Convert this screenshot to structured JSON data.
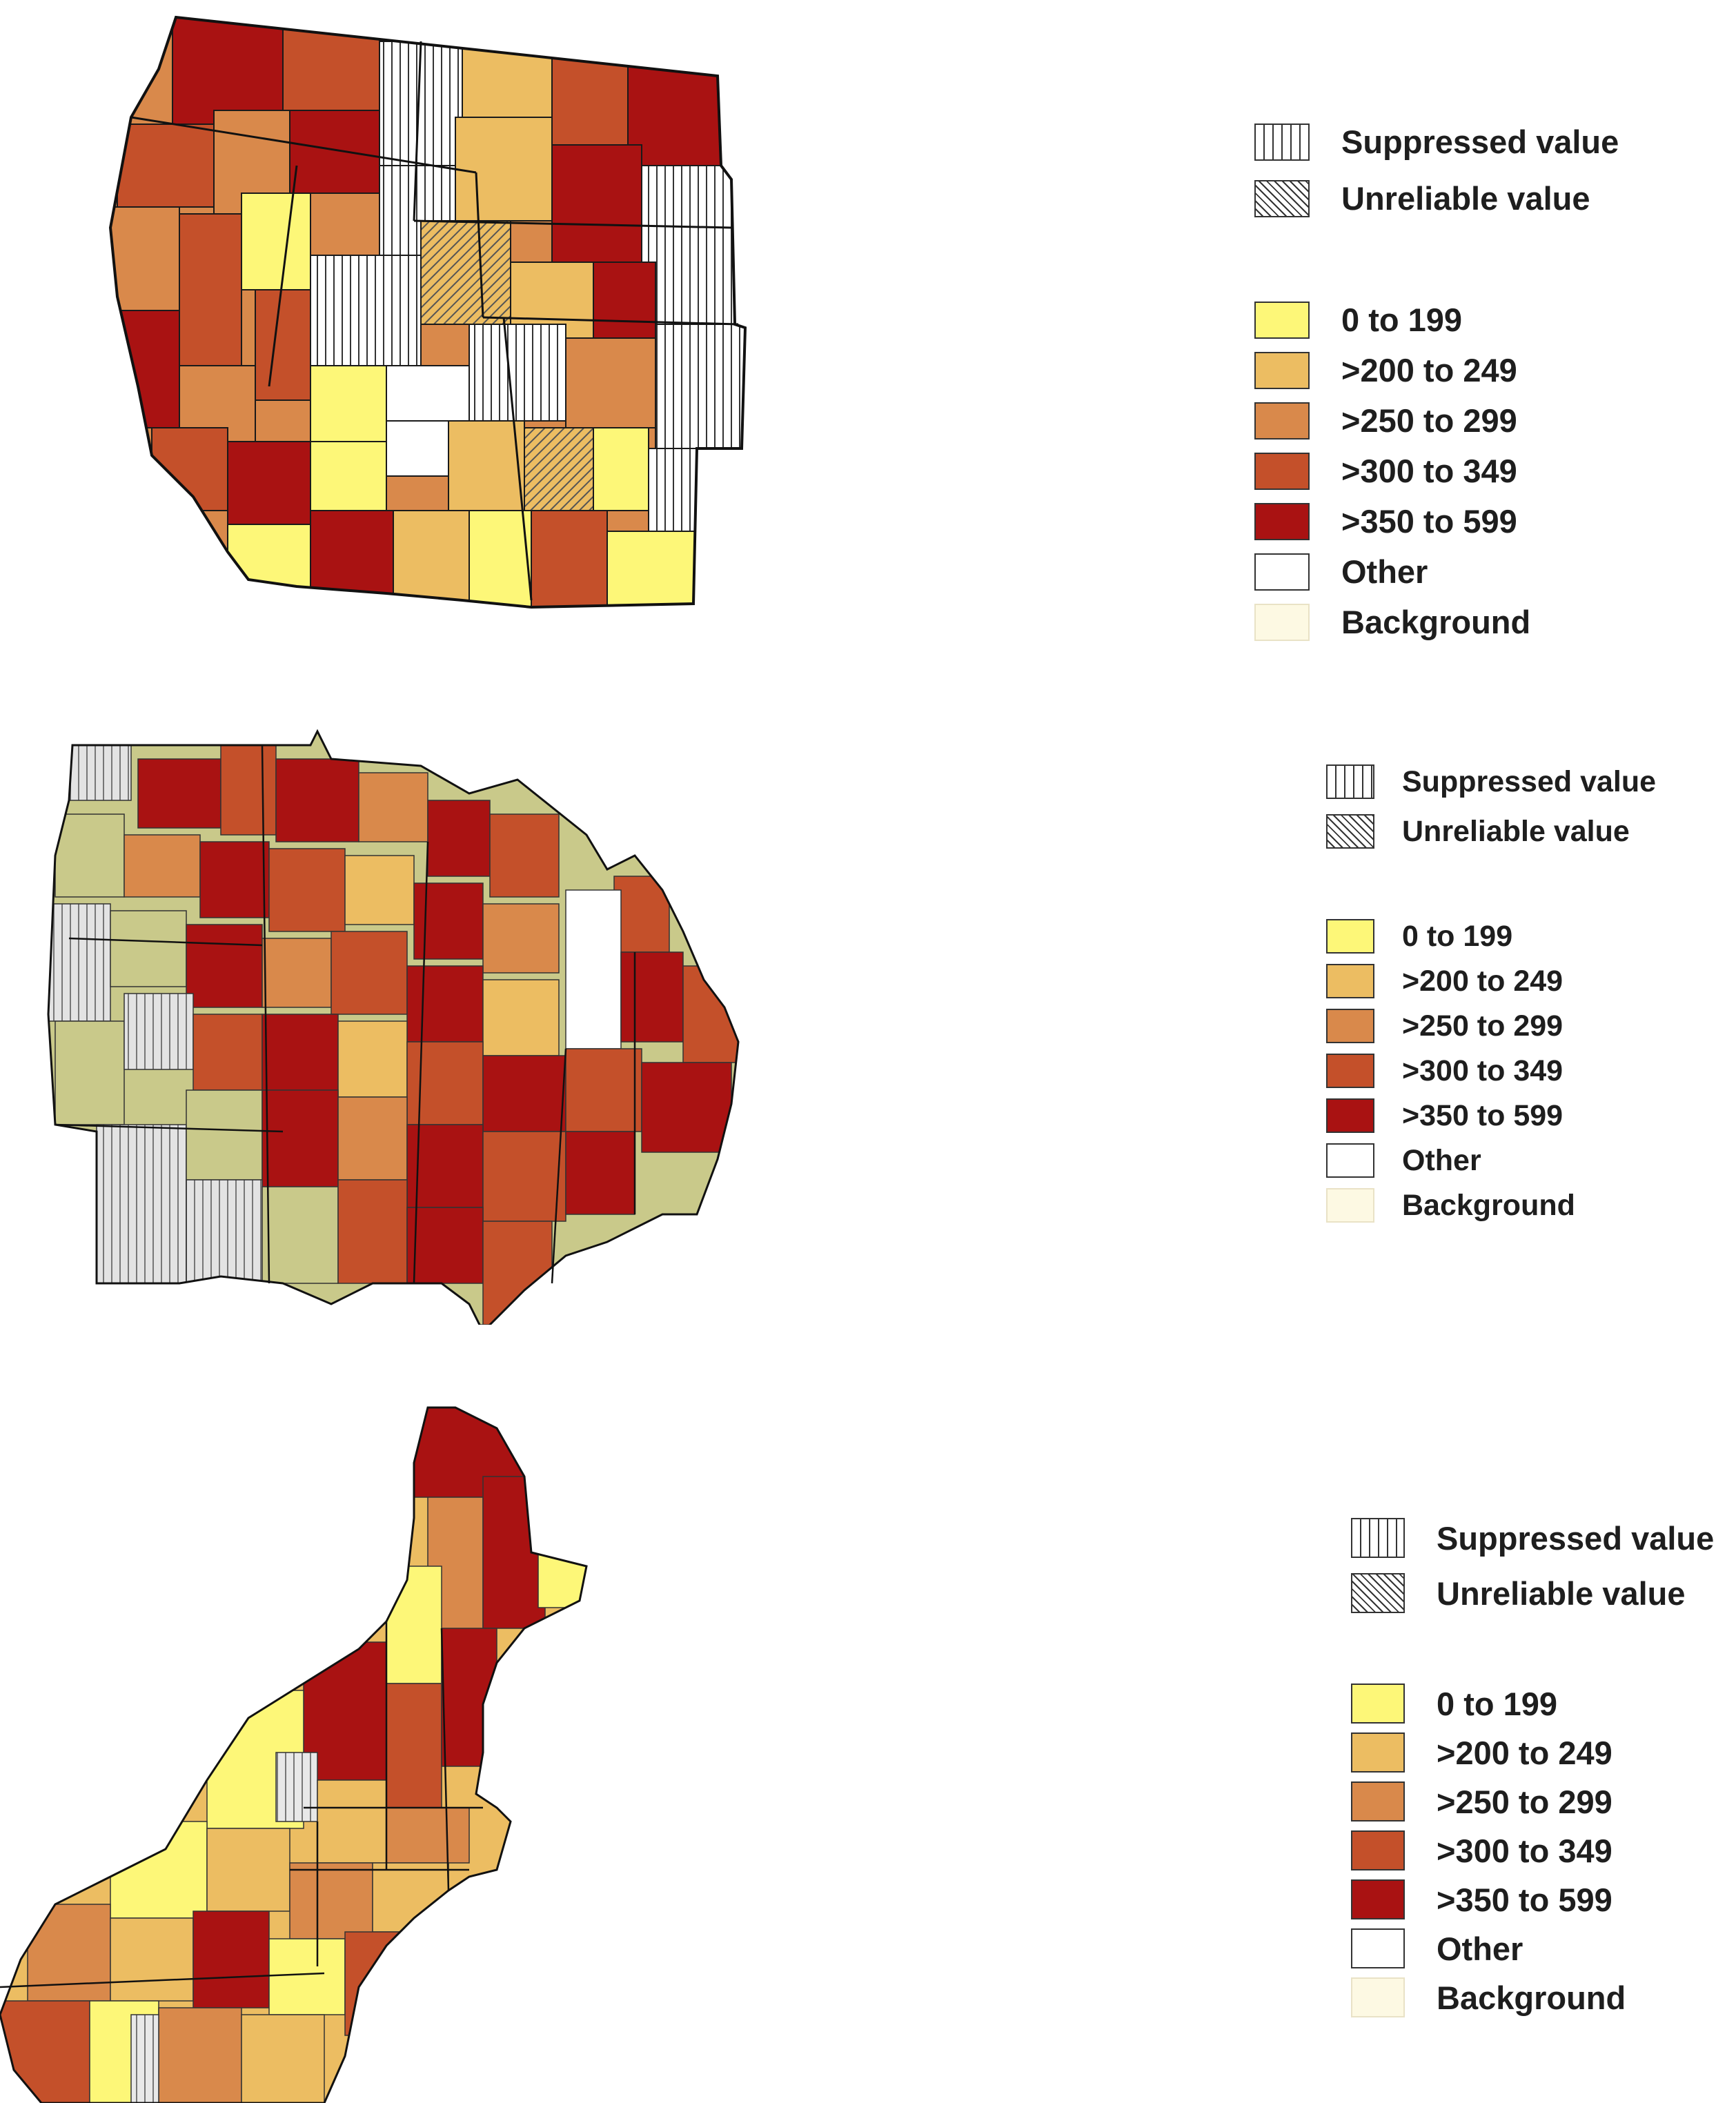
{
  "legend": {
    "suppressed_label": "Suppressed value",
    "unreliable_label": "Unreliable value",
    "classes": [
      {
        "label": "0 to 199",
        "color": "#fdf778"
      },
      {
        "label": ">200 to 249",
        "color": "#ecbd62"
      },
      {
        "label": ">250 to 299",
        "color": "#d9894b"
      },
      {
        "label": ">300 to 349",
        "color": "#c4502a"
      },
      {
        "label": ">350 to 599",
        "color": "#a91212"
      },
      {
        "label": "Other",
        "color": "#ffffff"
      },
      {
        "label": "Background",
        "color": "#fdf9e3"
      }
    ]
  },
  "colors": {
    "western_midwest_extra_class": "#c9c98a",
    "suppressed_pattern": "#333333",
    "unreliable_pattern": "#333333",
    "outline": "#1a1a1a"
  },
  "maps": [
    {
      "region": "west",
      "icon": "western-us-county-map"
    },
    {
      "region": "midwest",
      "icon": "midwest-us-county-map"
    },
    {
      "region": "northeast",
      "icon": "northeast-us-county-map"
    }
  ]
}
